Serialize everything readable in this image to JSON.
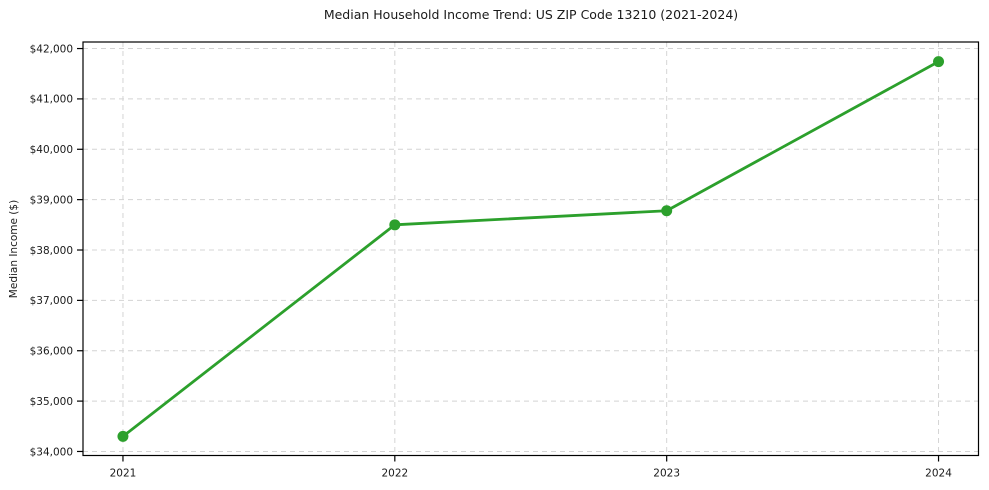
{
  "chart_data": {
    "type": "line",
    "title": "Median Household Income Trend: US ZIP Code 13210 (2021-2024)",
    "xlabel": "",
    "ylabel": "Median Income ($)",
    "x": [
      2021,
      2022,
      2023,
      2024
    ],
    "series": [
      {
        "name": "Median Household Income",
        "values": [
          34300,
          38500,
          38780,
          41740
        ]
      }
    ],
    "xticks": [
      {
        "v": 2021,
        "label": "2021"
      },
      {
        "v": 2022,
        "label": "2022"
      },
      {
        "v": 2023,
        "label": "2023"
      },
      {
        "v": 2024,
        "label": "2024"
      }
    ],
    "yticks": [
      {
        "v": 34000,
        "label": "$34,000"
      },
      {
        "v": 35000,
        "label": "$35,000"
      },
      {
        "v": 36000,
        "label": "$36,000"
      },
      {
        "v": 37000,
        "label": "$37,000"
      },
      {
        "v": 38000,
        "label": "$38,000"
      },
      {
        "v": 39000,
        "label": "$39,000"
      },
      {
        "v": 40000,
        "label": "$40,000"
      },
      {
        "v": 41000,
        "label": "$41,000"
      },
      {
        "v": 42000,
        "label": "$42,000"
      }
    ],
    "xlim": [
      2020.853,
      2024.147
    ],
    "ylim": [
      33920,
      42130
    ],
    "grid": true,
    "grid_style": "dashed",
    "legend": "none",
    "marker": "circle",
    "colors": {
      "line": "#2ca02c",
      "marker": "#2ca02c",
      "grid": "#d4d4d4",
      "spine": "#000000",
      "text": "#1a1a1a",
      "background": "#ffffff"
    }
  }
}
